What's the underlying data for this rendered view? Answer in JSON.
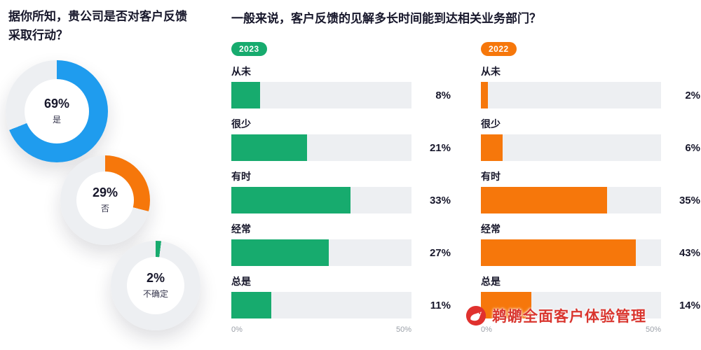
{
  "colors": {
    "blue": "#1F9CEE",
    "orange": "#F6770B",
    "green": "#17AB6E",
    "track": "#EDEFF2",
    "text_dark": "#17172B",
    "axis_text": "#9BA0A8",
    "watermark_red": "#D9362F"
  },
  "left_panel": {
    "title_line1": "据你所知，贵公司是否对客户反馈",
    "title_line2": "采取行动？",
    "donuts": [
      {
        "value": 69,
        "pct_label": "69%",
        "label": "是",
        "color": "#1F9CEE"
      },
      {
        "value": 29,
        "pct_label": "29%",
        "label": "否",
        "color": "#F6770B"
      },
      {
        "value": 2,
        "pct_label": "2%",
        "label": "不确定",
        "color": "#17AB6E"
      }
    ]
  },
  "right_panel": {
    "title": "一般来说，客户反馈的见解多长时间能到达相关业务部门？",
    "axis": {
      "min_label": "0%",
      "max_label": "50%",
      "max_value": 50
    },
    "groups": [
      {
        "year": "2023",
        "color": "#17AB6E",
        "rows": [
          {
            "label": "从未",
            "value": 8,
            "value_label": "8%"
          },
          {
            "label": "很少",
            "value": 21,
            "value_label": "21%"
          },
          {
            "label": "有时",
            "value": 33,
            "value_label": "33%"
          },
          {
            "label": "经常",
            "value": 27,
            "value_label": "27%"
          },
          {
            "label": "总是",
            "value": 11,
            "value_label": "11%"
          }
        ]
      },
      {
        "year": "2022",
        "color": "#F6770B",
        "rows": [
          {
            "label": "从未",
            "value": 2,
            "value_label": "2%"
          },
          {
            "label": "很少",
            "value": 6,
            "value_label": "6%"
          },
          {
            "label": "有时",
            "value": 35,
            "value_label": "35%"
          },
          {
            "label": "经常",
            "value": 43,
            "value_label": "43%"
          },
          {
            "label": "总是",
            "value": 14,
            "value_label": "14%"
          }
        ]
      }
    ]
  },
  "watermark": {
    "icon": "pelican-logo",
    "text": "鹈鹕全面客户体验管理"
  },
  "chart_data": [
    {
      "type": "pie",
      "style": "three separate donut gauges",
      "title": "据你所知，贵公司是否对客户反馈采取行动？",
      "categories": [
        "是",
        "否",
        "不确定"
      ],
      "values": [
        69,
        29,
        2
      ],
      "colors": [
        "#1F9CEE",
        "#F6770B",
        "#17AB6E"
      ]
    },
    {
      "type": "bar",
      "orientation": "horizontal",
      "title": "一般来说，客户反馈的见解多长时间能到达相关业务部门？",
      "categories": [
        "从未",
        "很少",
        "有时",
        "经常",
        "总是"
      ],
      "series": [
        {
          "name": "2023",
          "values": [
            8,
            21,
            33,
            27,
            11
          ],
          "color": "#17AB6E"
        },
        {
          "name": "2022",
          "values": [
            2,
            6,
            35,
            43,
            14
          ],
          "color": "#F6770B"
        }
      ],
      "xlim": [
        0,
        50
      ],
      "axis_ticks": [
        "0%",
        "50%"
      ],
      "grid": false,
      "legend_position": "badge above each column"
    }
  ]
}
